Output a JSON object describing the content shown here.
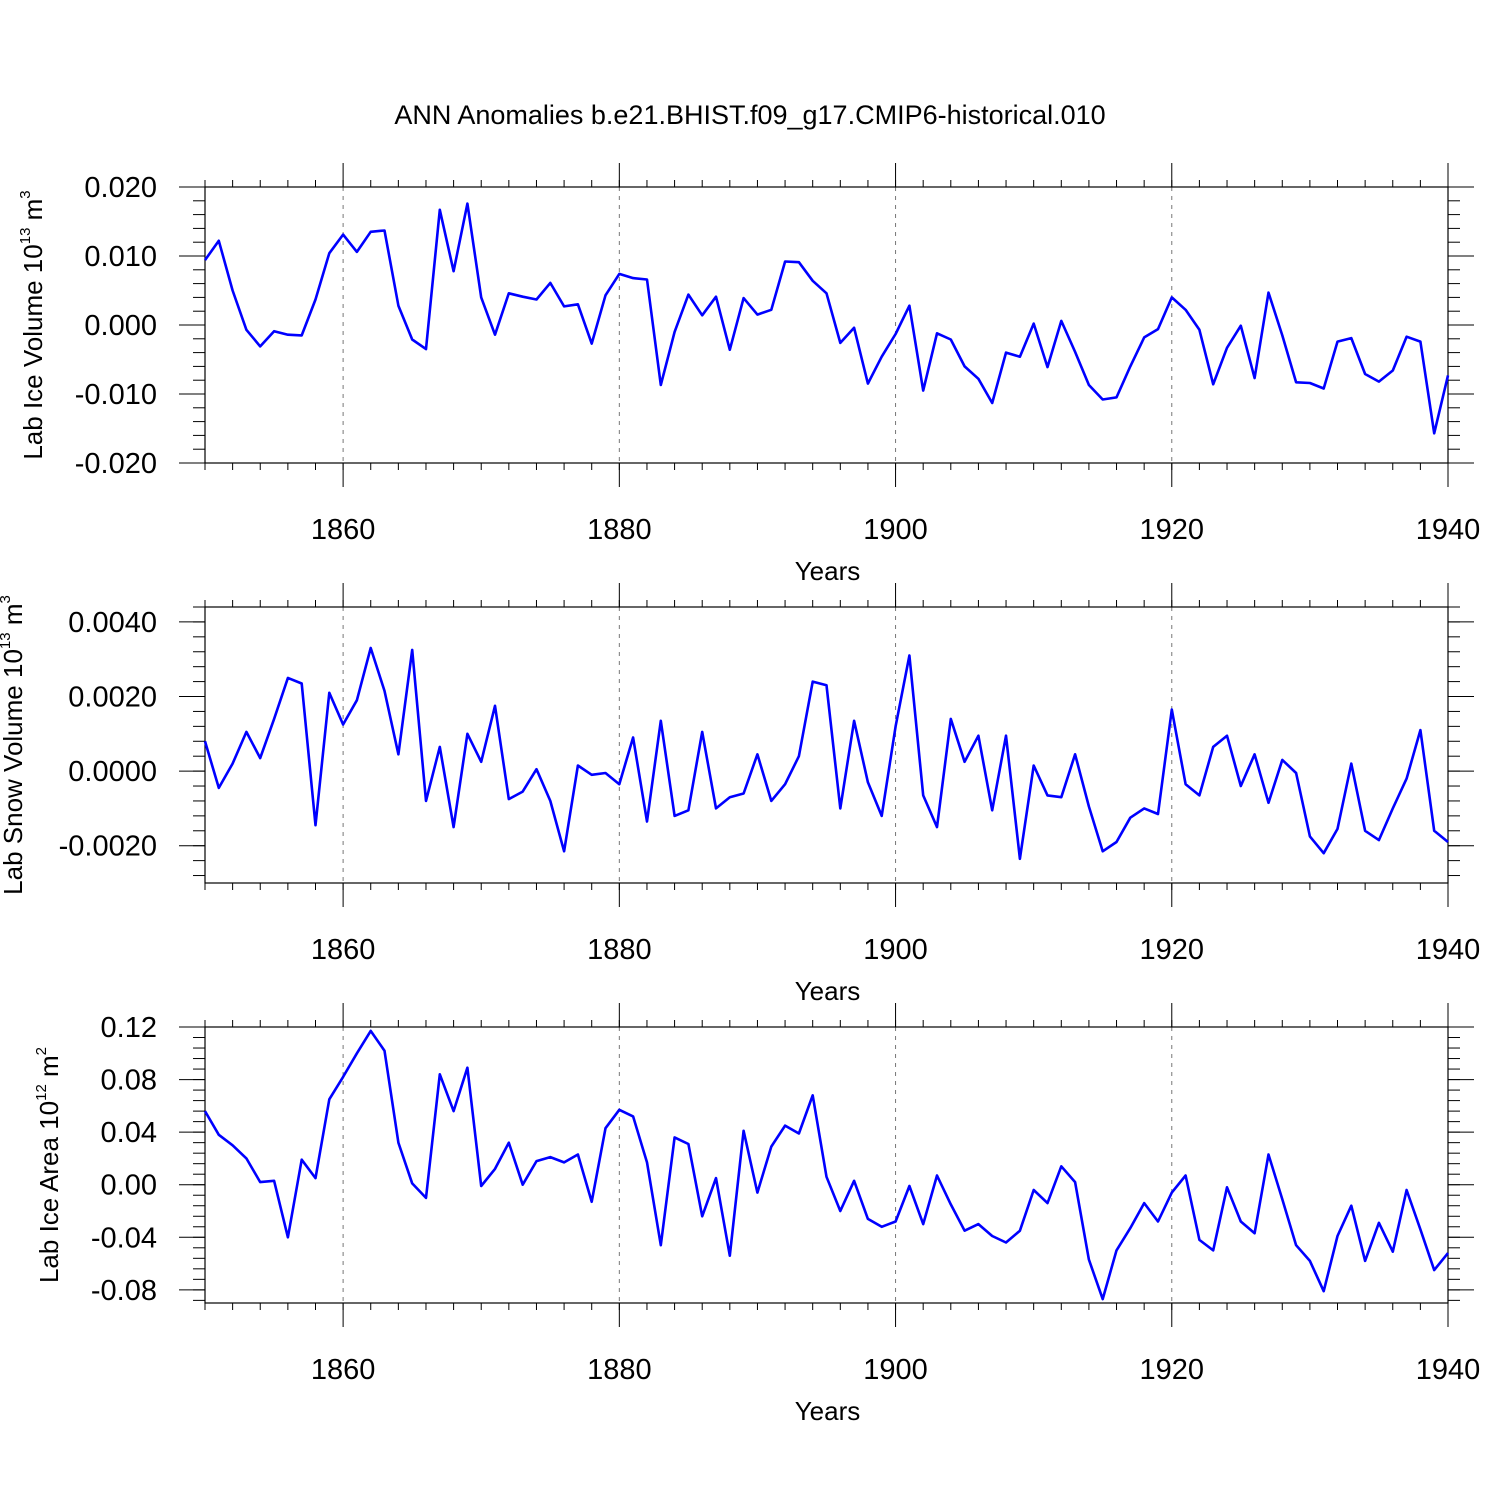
{
  "title": "ANN Anomalies b.e21.BHIST.f09_g17.CMIP6-historical.010",
  "line_color": "#0000ff",
  "chart_data": [
    {
      "type": "line",
      "xlabel": "Years",
      "ylabel": {
        "main": "Lab Ice Volume 10",
        "sup": "13",
        "unit": " m",
        "unit_sup": "3"
      },
      "xlim": [
        1850,
        1940
      ],
      "ylim": [
        -0.02,
        0.02
      ],
      "xticks": [
        1860,
        1880,
        1900,
        1920,
        1940
      ],
      "yticks": [
        -0.02,
        -0.01,
        0,
        0.01,
        0.02
      ],
      "ytick_labels": [
        "-0.020",
        "-0.010",
        "0.000",
        "0.010",
        "0.020"
      ],
      "x_start": 1850,
      "values": [
        0.0094,
        0.0122,
        0.005,
        -0.0007,
        -0.0031,
        -0.0009,
        -0.0014,
        -0.0015,
        0.0037,
        0.0104,
        0.0131,
        0.0106,
        0.0135,
        0.0137,
        0.0028,
        -0.0021,
        -0.0035,
        0.0167,
        0.0078,
        0.0176,
        0.004,
        -0.0014,
        0.0046,
        0.0041,
        0.0037,
        0.0061,
        0.0027,
        0.003,
        -0.0027,
        0.0043,
        0.0074,
        0.0068,
        0.0066,
        -0.0087,
        -0.001,
        0.0044,
        0.0014,
        0.0041,
        -0.0036,
        0.0039,
        0.0015,
        0.0022,
        0.0092,
        0.0091,
        0.0064,
        0.0046,
        -0.0026,
        -0.0004,
        -0.0085,
        -0.0046,
        -0.0013,
        0.0028,
        -0.0095,
        -0.0012,
        -0.0021,
        -0.006,
        -0.0078,
        -0.0113,
        -0.004,
        -0.0046,
        0.0002,
        -0.0061,
        0.0006,
        -0.0039,
        -0.0087,
        -0.0108,
        -0.0105,
        -0.006,
        -0.0018,
        -0.0006,
        0.004,
        0.0022,
        -0.0007,
        -0.0086,
        -0.0033,
        -0.0001,
        -0.0077,
        0.0047,
        -0.0015,
        -0.0083,
        -0.0084,
        -0.0092,
        -0.0024,
        -0.0019,
        -0.0071,
        -0.0082,
        -0.0066,
        -0.0017,
        -0.0024,
        -0.0157,
        -0.0073
      ]
    },
    {
      "type": "line",
      "xlabel": "Years",
      "ylabel": {
        "main": "Lab Snow Volume 10",
        "sup": "13",
        "unit": " m",
        "unit_sup": "3"
      },
      "xlim": [
        1850,
        1940
      ],
      "ylim": [
        -0.003,
        0.0044
      ],
      "xticks": [
        1860,
        1880,
        1900,
        1920,
        1940
      ],
      "yticks": [
        -0.002,
        0,
        0.002,
        0.004
      ],
      "ytick_labels": [
        "-0.0020",
        "0.0000",
        "0.0020",
        "0.0040"
      ],
      "x_start": 1850,
      "values": [
        0.0008,
        -0.00045,
        0.0002,
        0.00105,
        0.00035,
        0.0014,
        0.0025,
        0.00235,
        -0.00145,
        0.0021,
        0.00125,
        0.0019,
        0.0033,
        0.00215,
        0.00045,
        0.00325,
        -0.0008,
        0.00065,
        -0.0015,
        0.001,
        0.00025,
        0.00175,
        -0.00075,
        -0.00055,
        5e-05,
        -0.0008,
        -0.00215,
        0.00015,
        -0.0001,
        -5e-05,
        -0.00035,
        0.0009,
        -0.00135,
        0.00135,
        -0.0012,
        -0.00105,
        0.00105,
        -0.001,
        -0.0007,
        -0.0006,
        0.00045,
        -0.0008,
        -0.00035,
        0.0004,
        0.0024,
        0.0023,
        -0.001,
        0.00135,
        -0.0003,
        -0.0012,
        0.0012,
        0.0031,
        -0.00065,
        -0.0015,
        0.0014,
        0.00025,
        0.00095,
        -0.00105,
        0.00095,
        -0.00235,
        0.00015,
        -0.00065,
        -0.0007,
        0.00045,
        -0.00095,
        -0.00215,
        -0.0019,
        -0.00125,
        -0.001,
        -0.00115,
        0.00165,
        -0.00035,
        -0.00065,
        0.00065,
        0.00095,
        -0.0004,
        0.00045,
        -0.00085,
        0.0003,
        -5e-05,
        -0.00175,
        -0.0022,
        -0.00155,
        0.0002,
        -0.0016,
        -0.00185,
        -0.001,
        -0.0002,
        0.0011,
        -0.0016,
        -0.0019
      ]
    },
    {
      "type": "line",
      "xlabel": "Years",
      "ylabel": {
        "main": "Lab Ice Area 10",
        "sup": "12",
        "unit": " m",
        "unit_sup": "2"
      },
      "xlim": [
        1850,
        1940
      ],
      "ylim": [
        -0.09,
        0.12
      ],
      "xticks": [
        1860,
        1880,
        1900,
        1920,
        1940
      ],
      "yticks": [
        -0.08,
        -0.04,
        0,
        0.04,
        0.08,
        0.12
      ],
      "ytick_labels": [
        "-0.08",
        "-0.04",
        "0.00",
        "0.04",
        "0.08",
        "0.12"
      ],
      "x_start": 1850,
      "values": [
        0.056,
        0.038,
        0.03,
        0.02,
        0.002,
        0.003,
        -0.04,
        0.019,
        0.005,
        0.065,
        0.082,
        0.1,
        0.117,
        0.102,
        0.032,
        0.001,
        -0.01,
        0.084,
        0.056,
        0.089,
        -0.001,
        0.012,
        0.032,
        0.0,
        0.018,
        0.021,
        0.017,
        0.023,
        -0.013,
        0.043,
        0.057,
        0.052,
        0.017,
        -0.046,
        0.036,
        0.031,
        -0.024,
        0.005,
        -0.054,
        0.041,
        -0.006,
        0.029,
        0.045,
        0.039,
        0.068,
        0.006,
        -0.02,
        0.003,
        -0.026,
        -0.032,
        -0.028,
        -0.001,
        -0.03,
        0.007,
        -0.015,
        -0.035,
        -0.03,
        -0.039,
        -0.044,
        -0.035,
        -0.004,
        -0.014,
        0.014,
        0.002,
        -0.057,
        -0.087,
        -0.05,
        -0.033,
        -0.014,
        -0.028,
        -0.006,
        0.007,
        -0.042,
        -0.05,
        -0.002,
        -0.028,
        -0.037,
        0.023,
        -0.011,
        -0.046,
        -0.058,
        -0.081,
        -0.039,
        -0.016,
        -0.058,
        -0.029,
        -0.051,
        -0.004,
        -0.034,
        -0.065,
        -0.052
      ]
    }
  ]
}
